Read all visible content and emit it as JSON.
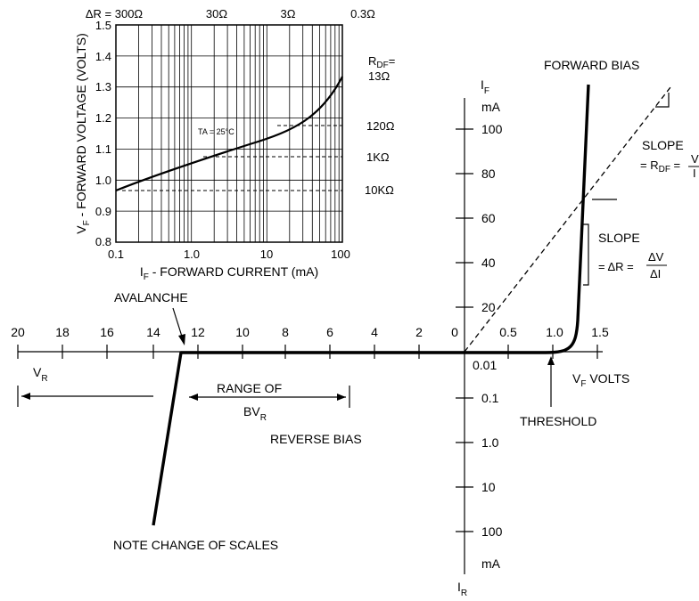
{
  "inset": {
    "top_labels": [
      "ΔR = 300Ω",
      "30Ω",
      "3Ω",
      "0.3Ω"
    ],
    "y_ticks": [
      "1.5",
      "1.4",
      "1.3",
      "1.2",
      "1.1",
      "1.0",
      "0.9",
      "0.8"
    ],
    "x_ticks": [
      "0.1",
      "1.0",
      "10",
      "100"
    ],
    "y_axis_label_pre": "V",
    "y_axis_label_sub": "F",
    "y_axis_label_post": " - FORWARD VOLTAGE (VOLTS)",
    "x_axis_label_pre": "I",
    "x_axis_label_sub": "F",
    "x_axis_label_post": " - FORWARD CURRENT (mA)",
    "ta_label": "TA = 25°C",
    "rdf_label_main": "R",
    "rdf_label_sub": "DF",
    "rdf_label_eq": "=",
    "rdf_values": [
      "13Ω",
      "120Ω",
      "1KΩ",
      "10KΩ"
    ]
  },
  "main": {
    "forward_bias": "FORWARD BIAS",
    "if_axis_symbol": "I",
    "if_axis_sub": "F",
    "if_axis_unit": "mA",
    "if_ticks": [
      "100",
      "80",
      "60",
      "40",
      "20"
    ],
    "reverse_ticks": [
      "20",
      "18",
      "16",
      "14",
      "12",
      "10",
      "8",
      "6",
      "4",
      "2",
      "0"
    ],
    "vf_ticks": [
      "0.5",
      "1.0",
      "1.5"
    ],
    "ir_ticks": [
      "0.01",
      "0.1",
      "1.0",
      "10",
      "100"
    ],
    "ir_unit": "mA",
    "ir_axis_symbol": "I",
    "ir_axis_sub": "R",
    "vr_symbol": "V",
    "vr_sub": "R",
    "vf_volts_pre": "V",
    "vf_volts_sub": "F",
    "vf_volts_post": " VOLTS",
    "avalanche": "AVALANCHE",
    "range_of": "RANGE OF",
    "bv_main": "BV",
    "bv_sub": "R",
    "reverse_bias": "REVERSE BIAS",
    "threshold": "THRESHOLD",
    "note_scales": "NOTE CHANGE OF SCALES",
    "slope_top": "SLOPE",
    "slope_top_eq": "= R",
    "slope_top_eq_sub": "DF",
    "slope_top_eq_post": " =",
    "slope_top_num": "V",
    "slope_top_den": "I",
    "slope_mid": "SLOPE",
    "slope_mid_eq": "= ΔR =",
    "slope_mid_num": "ΔV",
    "slope_mid_den": "ΔI"
  }
}
